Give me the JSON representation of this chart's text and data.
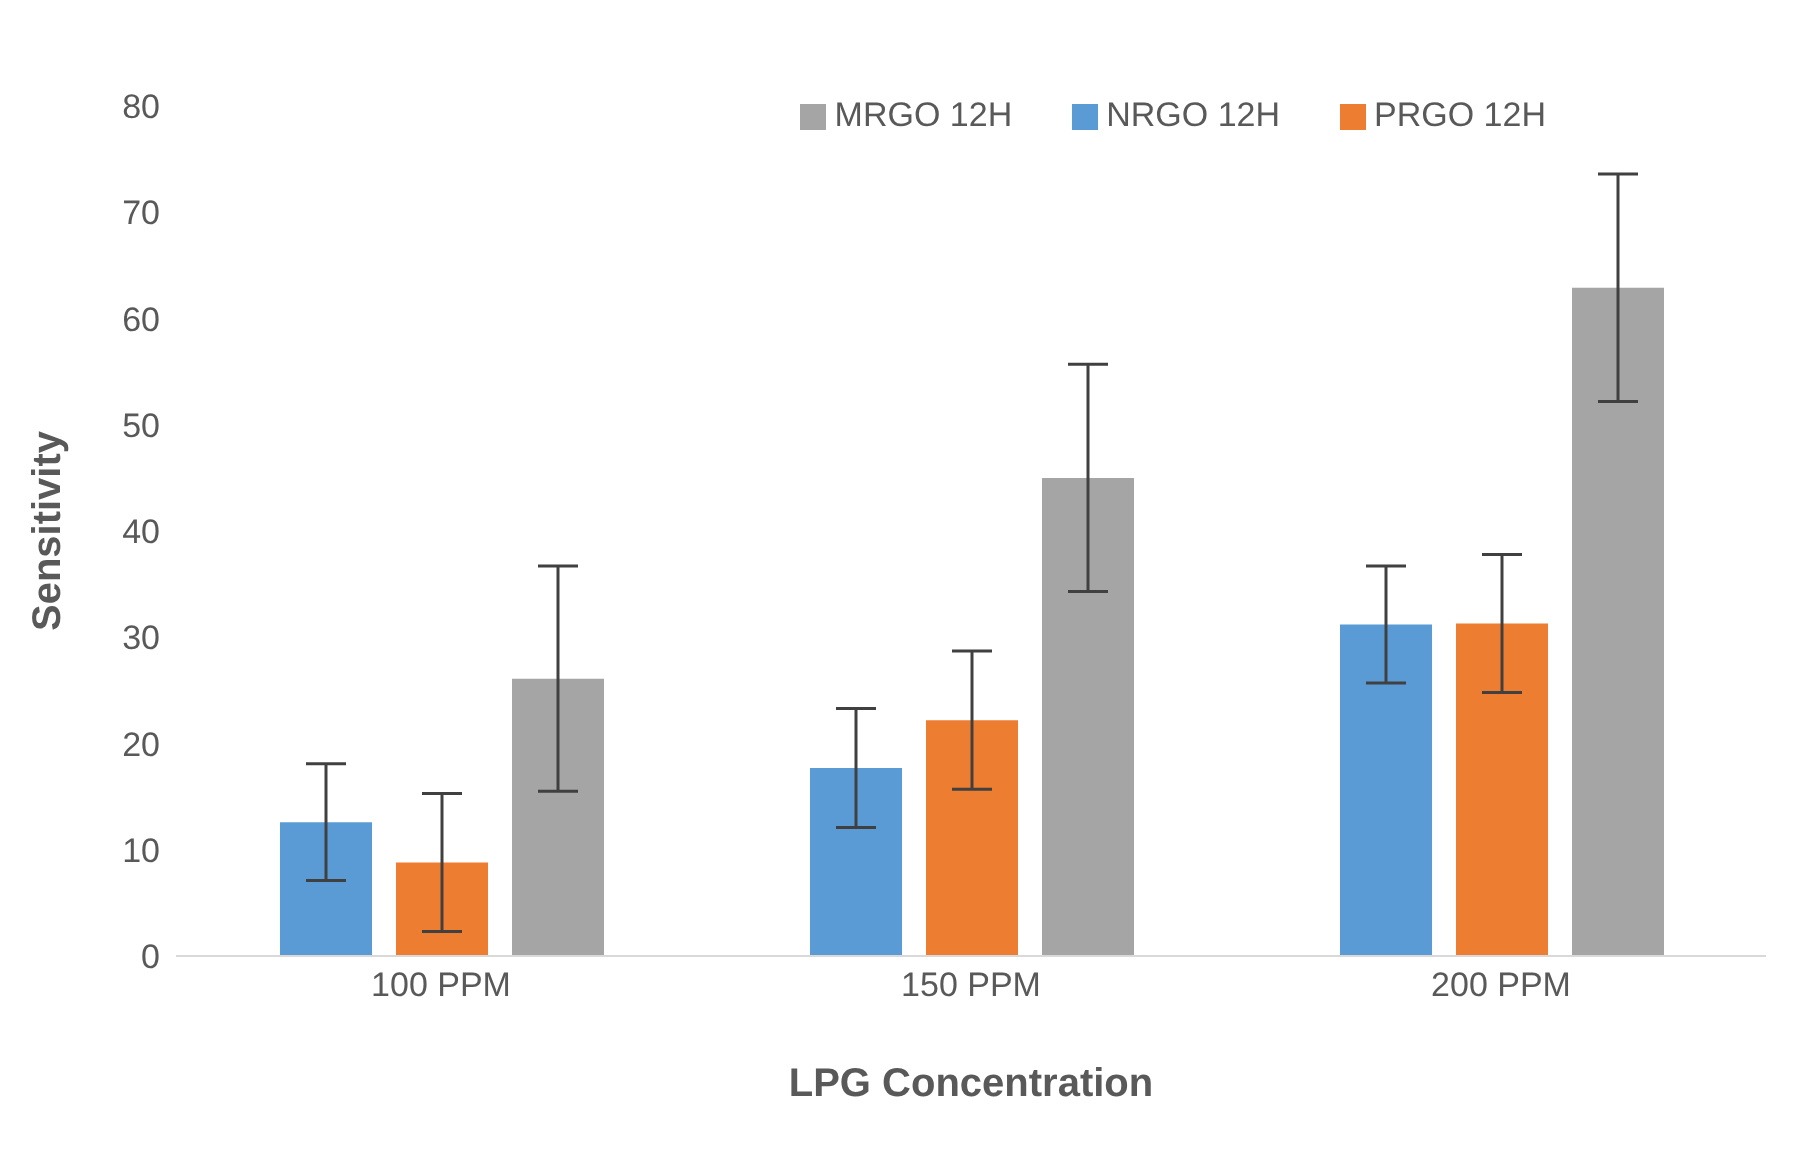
{
  "chart_data": {
    "type": "bar",
    "xlabel": "LPG Concentration",
    "ylabel": "Sensitivity",
    "categories": [
      "100 PPM",
      "150 PPM",
      "200 PPM"
    ],
    "series": [
      {
        "name": "NRGO 12H",
        "color": "#5b9bd5",
        "values": [
          12.6,
          17.7,
          31.2
        ],
        "errors": [
          5.5,
          5.6,
          5.5
        ]
      },
      {
        "name": "PRGO 12H",
        "color": "#ed7d31",
        "values": [
          8.8,
          22.2,
          31.3
        ],
        "errors": [
          6.5,
          6.5,
          6.5
        ]
      },
      {
        "name": "MRGO 12H",
        "color": "#a5a5a5",
        "values": [
          26.1,
          45.0,
          62.9
        ],
        "errors": [
          10.6,
          10.7,
          10.7
        ]
      }
    ],
    "ylim": [
      0,
      80
    ],
    "yticks": [
      0,
      10,
      20,
      30,
      40,
      50,
      60,
      70,
      80
    ],
    "grid": false,
    "legend": "top right"
  }
}
